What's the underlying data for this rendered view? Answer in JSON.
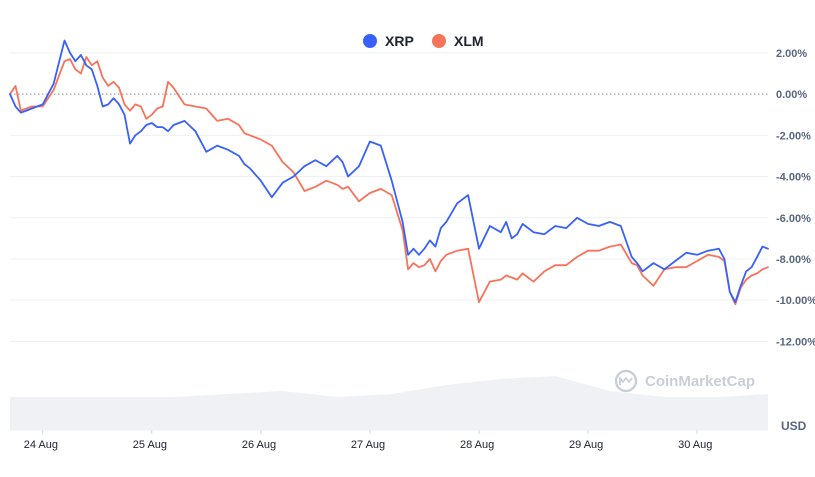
{
  "chart_data": {
    "type": "line",
    "title": "",
    "xlabel": "",
    "ylabel": "",
    "currency": "USD",
    "watermark": "CoinMarketCap",
    "ylim": [
      -13,
      3.5
    ],
    "y_ticks": [
      2,
      0,
      -2,
      -4,
      -6,
      -8,
      -10,
      -12
    ],
    "y_tick_labels": [
      "2.00%",
      "0.00%",
      "-2.00%",
      "-4.00%",
      "-6.00%",
      "-8.00%",
      "-10.00%",
      "-12.00%"
    ],
    "x_tick_labels": [
      "24 Aug",
      "25 Aug",
      "26 Aug",
      "27 Aug",
      "28 Aug",
      "29 Aug",
      "30 Aug"
    ],
    "x_tick_positions": [
      0.3,
      1.3,
      2.3,
      3.3,
      4.3,
      5.3,
      6.3
    ],
    "xlim": [
      0,
      6.95
    ],
    "legend_placement": "top-center",
    "series": [
      {
        "name": "XRP",
        "color": "#3861fb",
        "x": [
          0.0,
          0.05,
          0.1,
          0.15,
          0.2,
          0.3,
          0.4,
          0.5,
          0.55,
          0.6,
          0.65,
          0.7,
          0.75,
          0.8,
          0.85,
          0.9,
          0.95,
          1.0,
          1.05,
          1.1,
          1.15,
          1.2,
          1.25,
          1.3,
          1.35,
          1.4,
          1.45,
          1.5,
          1.6,
          1.7,
          1.8,
          1.9,
          2.0,
          2.1,
          2.15,
          2.2,
          2.3,
          2.4,
          2.5,
          2.6,
          2.7,
          2.8,
          2.9,
          3.0,
          3.05,
          3.1,
          3.2,
          3.3,
          3.4,
          3.5,
          3.6,
          3.65,
          3.7,
          3.75,
          3.8,
          3.85,
          3.9,
          3.95,
          4.0,
          4.1,
          4.2,
          4.3,
          4.4,
          4.5,
          4.55,
          4.6,
          4.65,
          4.7,
          4.8,
          4.9,
          5.0,
          5.1,
          5.2,
          5.3,
          5.4,
          5.5,
          5.6,
          5.7,
          5.75,
          5.8,
          5.9,
          6.0,
          6.1,
          6.2,
          6.3,
          6.4,
          6.5,
          6.55,
          6.6,
          6.65,
          6.7,
          6.75,
          6.8,
          6.85,
          6.9,
          6.95
        ],
        "values": [
          0.0,
          -0.6,
          -0.9,
          -0.8,
          -0.7,
          -0.5,
          0.5,
          2.6,
          2.0,
          1.6,
          1.9,
          1.4,
          1.2,
          0.4,
          -0.6,
          -0.5,
          -0.2,
          -0.5,
          -1.0,
          -2.4,
          -2.0,
          -1.8,
          -1.5,
          -1.4,
          -1.6,
          -1.6,
          -1.8,
          -1.5,
          -1.3,
          -1.8,
          -2.8,
          -2.5,
          -2.7,
          -3.0,
          -3.4,
          -3.6,
          -4.2,
          -5.0,
          -4.3,
          -4.0,
          -3.5,
          -3.2,
          -3.5,
          -3.0,
          -3.3,
          -4.0,
          -3.5,
          -2.3,
          -2.5,
          -4.2,
          -6.2,
          -7.8,
          -7.5,
          -7.8,
          -7.5,
          -7.1,
          -7.4,
          -6.5,
          -6.2,
          -5.3,
          -4.9,
          -7.5,
          -6.4,
          -6.7,
          -6.2,
          -7.0,
          -6.8,
          -6.3,
          -6.7,
          -6.8,
          -6.4,
          -6.5,
          -6.0,
          -6.3,
          -6.4,
          -6.2,
          -6.4,
          -7.9,
          -8.2,
          -8.6,
          -8.2,
          -8.5,
          -8.1,
          -7.7,
          -7.8,
          -7.6,
          -7.5,
          -8.0,
          -9.6,
          -10.1,
          -9.3,
          -8.6,
          -8.4,
          -7.9,
          -7.4,
          -7.5
        ]
      },
      {
        "name": "XLM",
        "color": "#f7735b",
        "x": [
          0.0,
          0.05,
          0.1,
          0.15,
          0.2,
          0.3,
          0.4,
          0.5,
          0.55,
          0.6,
          0.65,
          0.7,
          0.75,
          0.8,
          0.85,
          0.9,
          0.95,
          1.0,
          1.05,
          1.1,
          1.15,
          1.2,
          1.25,
          1.3,
          1.35,
          1.4,
          1.45,
          1.5,
          1.6,
          1.7,
          1.8,
          1.9,
          2.0,
          2.1,
          2.15,
          2.2,
          2.3,
          2.4,
          2.5,
          2.6,
          2.7,
          2.8,
          2.9,
          3.0,
          3.05,
          3.1,
          3.2,
          3.3,
          3.4,
          3.5,
          3.6,
          3.65,
          3.7,
          3.75,
          3.8,
          3.85,
          3.9,
          3.95,
          4.0,
          4.1,
          4.2,
          4.3,
          4.4,
          4.5,
          4.55,
          4.6,
          4.65,
          4.7,
          4.8,
          4.9,
          5.0,
          5.1,
          5.2,
          5.3,
          5.4,
          5.5,
          5.6,
          5.7,
          5.75,
          5.8,
          5.9,
          6.0,
          6.1,
          6.2,
          6.3,
          6.4,
          6.5,
          6.55,
          6.6,
          6.65,
          6.7,
          6.75,
          6.8,
          6.85,
          6.9,
          6.95
        ],
        "values": [
          0.0,
          0.4,
          -0.8,
          -0.7,
          -0.6,
          -0.6,
          0.2,
          1.6,
          1.7,
          1.2,
          1.0,
          1.8,
          1.4,
          1.6,
          0.8,
          0.4,
          0.6,
          0.3,
          -0.5,
          -0.8,
          -0.5,
          -0.6,
          -1.2,
          -1.0,
          -0.7,
          -0.6,
          0.6,
          0.3,
          -0.5,
          -0.6,
          -0.7,
          -1.3,
          -1.2,
          -1.5,
          -1.9,
          -2.0,
          -2.2,
          -2.5,
          -3.3,
          -3.8,
          -4.7,
          -4.5,
          -4.2,
          -4.4,
          -4.6,
          -4.5,
          -5.2,
          -4.8,
          -4.6,
          -4.9,
          -6.6,
          -8.5,
          -8.2,
          -8.4,
          -8.3,
          -8.0,
          -8.6,
          -8.1,
          -7.8,
          -7.6,
          -7.5,
          -10.1,
          -9.1,
          -9.0,
          -8.8,
          -8.9,
          -9.0,
          -8.7,
          -9.1,
          -8.6,
          -8.3,
          -8.3,
          -7.9,
          -7.6,
          -7.6,
          -7.4,
          -7.3,
          -8.2,
          -8.3,
          -8.8,
          -9.3,
          -8.5,
          -8.4,
          -8.4,
          -8.1,
          -7.8,
          -7.9,
          -8.1,
          -9.6,
          -10.2,
          -9.4,
          -9.0,
          -8.8,
          -8.7,
          -8.5,
          -8.4
        ]
      }
    ],
    "volume": {
      "x": [
        0.0,
        0.5,
        1.0,
        1.5,
        2.0,
        2.5,
        3.0,
        3.5,
        4.0,
        4.5,
        5.0,
        5.5,
        6.0,
        6.5,
        6.95
      ],
      "values": [
        0.55,
        0.55,
        0.55,
        0.55,
        0.6,
        0.65,
        0.55,
        0.6,
        0.75,
        0.85,
        0.9,
        0.65,
        0.55,
        0.55,
        0.6
      ]
    }
  }
}
